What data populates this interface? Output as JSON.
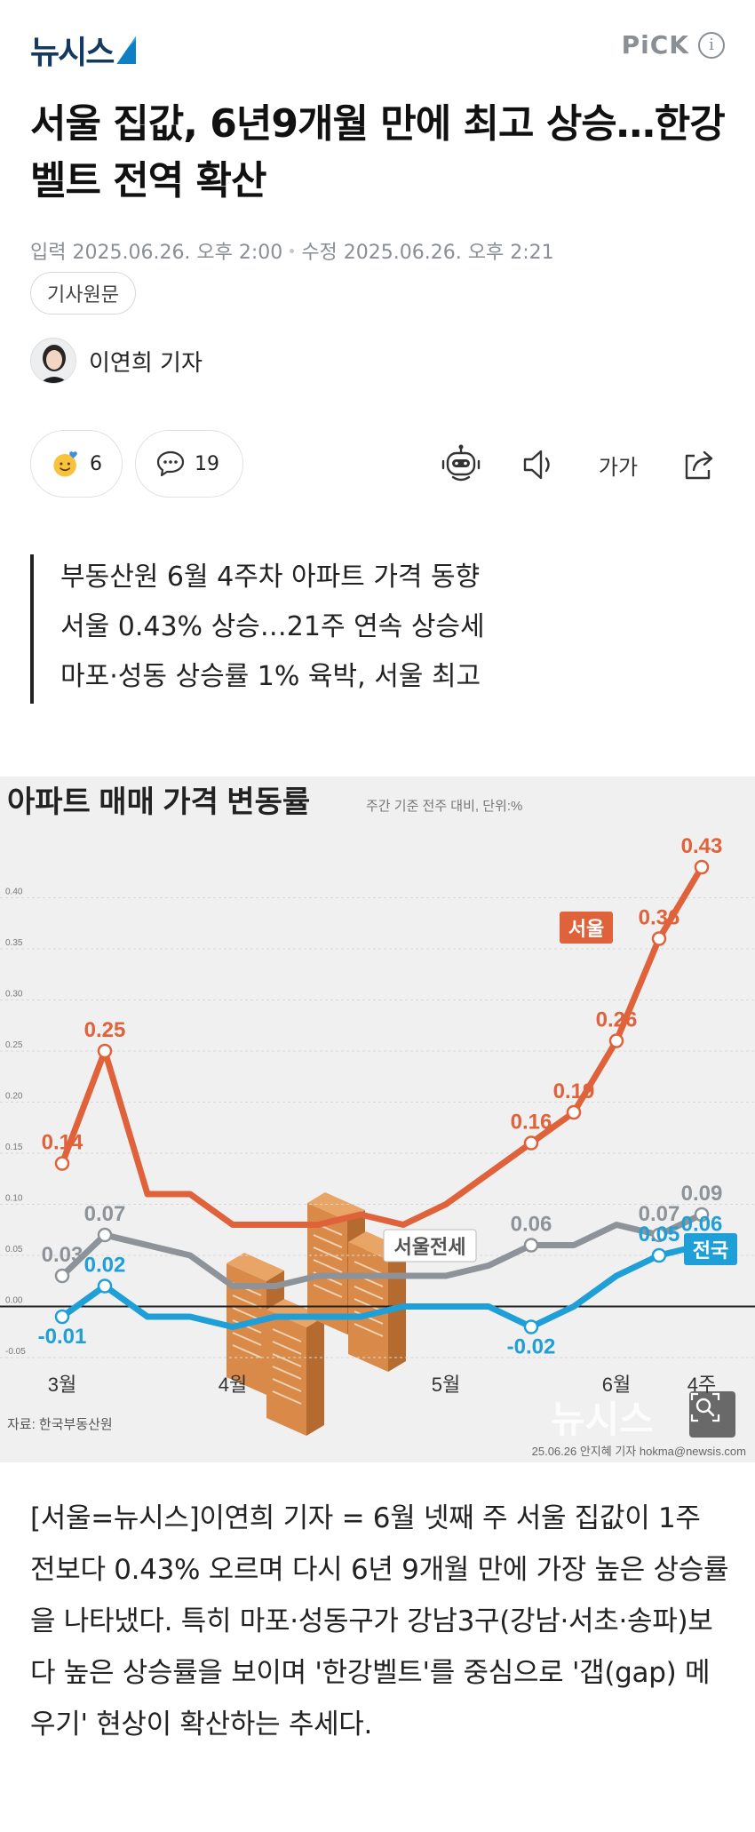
{
  "header": {
    "logo": "뉴시스",
    "pick_label": "PiCK",
    "info_label": "i"
  },
  "article": {
    "title": "서울 집값, 6년9개월 만에 최고 상승…한강벨트 전역 확산",
    "published": "입력 2025.06.26. 오후 2:00",
    "modified": "수정 2025.06.26. 오후 2:21",
    "original_button": "기사원문",
    "reporter": "이연희 기자",
    "reaction_count": "6",
    "comment_count": "19",
    "font_size_label": "가가",
    "summary": [
      "부동산원 6월 4주차 아파트 가격 동향",
      "서울 0.43% 상승…21주 연속 상승세",
      "마포·성동 상승률 1% 육박, 서울 최고"
    ],
    "body": "[서울=뉴시스]이연희 기자 = 6월 넷째 주 서울 집값이 1주 전보다 0.43% 오르며 다시 6년 9개월 만에 가장 높은 상승률을 나타냈다. 특히 마포·성동구가 강남3구(강남·서초·송파)보다 높은 상승률을 보이며 '한강벨트'를 중심으로 '갭(gap) 메우기' 현상이 확산하는 추세다."
  },
  "icons": {
    "reaction": "smiley-heart-icon",
    "comment": "speech-bubble-icon",
    "tts": "robot-icon",
    "sound": "speaker-icon",
    "share": "share-icon",
    "zoom": "magnifier-icon"
  },
  "colors": {
    "seoul": "#e0623a",
    "jeonse": "#8d9399",
    "national": "#1e9fd8",
    "zero_line": "#222222"
  },
  "chart_data": {
    "type": "line",
    "title": "아파트 매매 가격 변동률",
    "subtitle": "주간 기준 전주 대비, 단위:%",
    "source": "자료: 한국부동산원",
    "credit": "25.06.26 안지혜 기자 hokma@newsis.com",
    "watermark": "뉴시스",
    "x_tick_labels": [
      "3월",
      "4월",
      "5월",
      "6월",
      "4주"
    ],
    "y_ticks": [
      "-0.05",
      "0.00",
      "0.05",
      "0.10",
      "0.15",
      "0.20",
      "0.25",
      "0.30",
      "0.35",
      "0.40"
    ],
    "ylim": [
      -0.05,
      0.43
    ],
    "grid": true,
    "series": [
      {
        "name": "서울",
        "values": [
          0.14,
          0.25,
          0.11,
          0.11,
          0.08,
          0.08,
          0.08,
          0.09,
          0.08,
          0.1,
          0.13,
          0.16,
          0.19,
          0.26,
          0.36,
          0.43
        ],
        "labeled_indices": [
          0,
          1,
          11,
          12,
          13,
          14,
          15
        ]
      },
      {
        "name": "서울전세",
        "values": [
          0.03,
          0.07,
          0.06,
          0.05,
          0.02,
          0.02,
          0.03,
          0.03,
          0.03,
          0.03,
          0.04,
          0.06,
          0.06,
          0.08,
          0.07,
          0.09
        ],
        "labeled_indices": [
          0,
          1,
          11,
          14,
          15
        ]
      },
      {
        "name": "전국",
        "values": [
          -0.01,
          0.02,
          -0.01,
          -0.01,
          -0.02,
          -0.01,
          -0.01,
          -0.01,
          0.0,
          0.0,
          0.0,
          -0.02,
          0.0,
          0.03,
          0.05,
          0.06
        ],
        "labeled_indices": [
          0,
          1,
          11,
          14,
          15
        ]
      }
    ],
    "point_labels": {
      "서울": [
        "0.14",
        "0.25",
        "0.16",
        "0.19",
        "0.26",
        "0.36",
        "0.43"
      ],
      "서울전세": [
        "0.03",
        "0.07",
        "0.06",
        "0.07",
        "0.09"
      ],
      "전국": [
        "-0.01",
        "0.02",
        "-0.02",
        "0.05",
        "0.06"
      ]
    }
  }
}
